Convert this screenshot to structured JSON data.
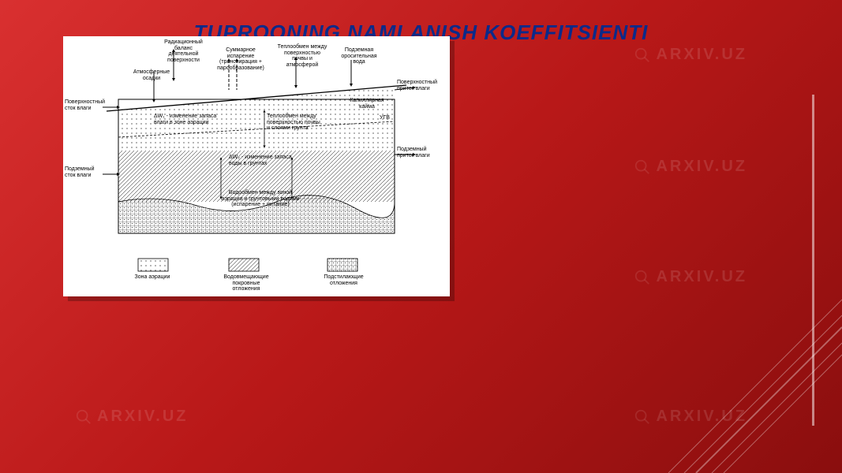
{
  "title": "TUPROQNING NAMLANISH KOEFFITSIENTI",
  "watermark_text": "ARXIV.UZ",
  "diagram": {
    "background": "#ffffff",
    "labels": {
      "rad_balance": "Радиационный\nбаланс\nдеятельной\nповерхности",
      "sum_evap": "Суммарное\nиспарение\n(транспирация +\nпарообразование)",
      "heat_exchange": "Теплообмен между\nповерхностью\nпочвы и\nатмосферой",
      "groundwater_rise": "Подземная\nоросительная\nвода",
      "atm_precip": "Атмосферные\nосадки",
      "surface_inflow": "Поверхностный\nприток влаги",
      "surface_runoff": "Поверхностный\nсток влаги",
      "groundwater_inflow": "Подземный\nприток влаги",
      "groundwater_outflow": "Подземный\nсток влаги",
      "dw1": "ΔW₁ - изменение запаса\nвлаги в зоне аэрации",
      "heat_soil": "Теплообмен между\nповерхностью почвы\nи слоями грунта",
      "dw2": "ΔW₂ - изменение запаса\nводы в грунтах",
      "ugv": "УГВ",
      "capillary": "Капиллярная\nкайма",
      "water_exchange": "Водообмен между зоной\nаэрации и грунтовыми водами\n(испарение + питание)",
      "legend_aeration": "Зона аэрации",
      "legend_aquifer": "Водовмещающие\nпокровные\nотложения",
      "legend_bedrock": "Подстилающие\nотложения"
    },
    "colors": {
      "text": "#000000",
      "line": "#000000",
      "hatch": "#000000"
    }
  },
  "styling": {
    "slide_gradient_start": "#d93030",
    "slide_gradient_mid": "#b81818",
    "slide_gradient_end": "#8a0e0e",
    "title_color": "#0b2a8a",
    "title_fontsize": 26,
    "watermark_color": "rgba(255,255,255,0.12)",
    "diagonal_line_color": "rgba(255,255,255,0.35)"
  }
}
